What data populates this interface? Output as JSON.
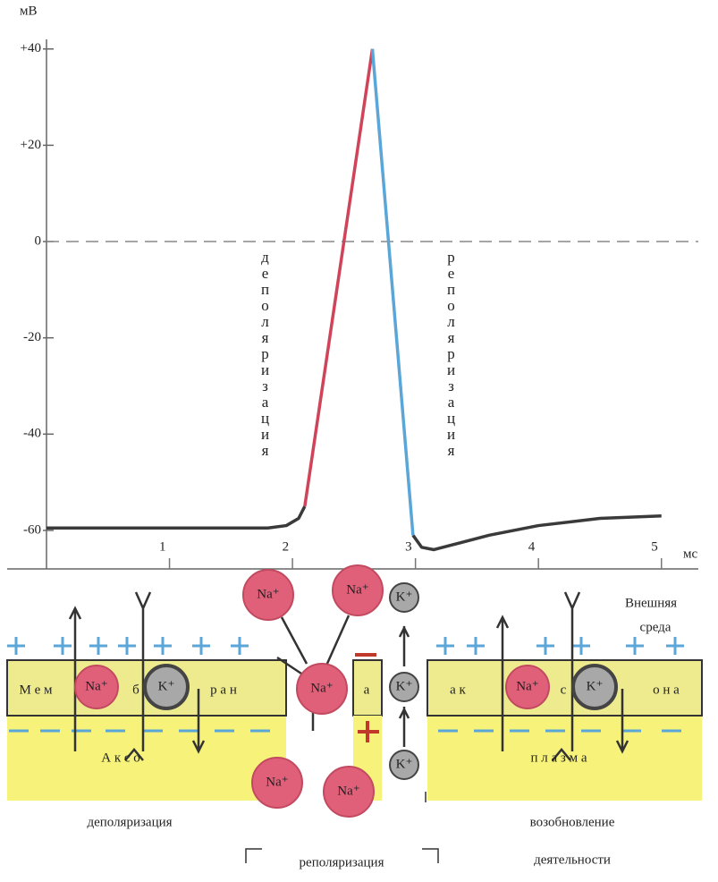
{
  "chart_data": {
    "type": "line",
    "y_label": "мВ",
    "x_label": "мс",
    "annotations": [
      "деполяризация",
      "реполяризация"
    ],
    "x": [
      0,
      1,
      1.8,
      1.95,
      2.05,
      2.1,
      2.65,
      2.98,
      3.05,
      3.15,
      3.3,
      3.6,
      4,
      4.5,
      5
    ],
    "series": [
      {
        "color": "#3a3a3a",
        "values": [
          -59.5,
          -59.5,
          -59.5,
          -59,
          -57.5,
          -55,
          null,
          -61,
          -63.5,
          -64,
          -63,
          -61,
          -59,
          -57.5,
          -57
        ]
      },
      {
        "color": "#d0445a",
        "values": [
          null,
          null,
          null,
          null,
          null,
          -55,
          40,
          null,
          null,
          null,
          null,
          null,
          null,
          null,
          null
        ]
      },
      {
        "color": "#5aa6d8",
        "values": [
          null,
          null,
          null,
          null,
          null,
          null,
          40,
          -61,
          null,
          null,
          null,
          null,
          null,
          null,
          null
        ]
      }
    ],
    "xlim": [
      0,
      5.3
    ],
    "ylim": [
      -68,
      42
    ],
    "xticks": [
      1,
      2,
      3,
      4,
      5
    ],
    "yticks": [
      {
        "value": 40,
        "label": "+40"
      },
      {
        "value": 20,
        "label": "+20"
      },
      0,
      -20,
      -40,
      -60
    ],
    "zero_line": true
  },
  "diagram": {
    "outer_medium": [
      "Внешняя",
      "среда"
    ],
    "membrane_text": [
      "М е м",
      "б",
      "р а н",
      "а",
      "а к",
      "с",
      "о н а"
    ],
    "axoplasm_text": [
      "А   к   с   о",
      "п   л   а   з   м   а"
    ],
    "ions": [
      "Na⁺",
      "K⁺",
      "Na⁺",
      "Na⁺",
      "Na⁺",
      "Na⁺",
      "Na⁺",
      "K⁺",
      "K⁺",
      "K⁺",
      "Na⁺",
      "K⁺"
    ],
    "captions": {
      "depolarization": "деполяризация",
      "repolarization": "реполяризация",
      "resumption": [
        "возобновление",
        "деятельности"
      ]
    }
  }
}
